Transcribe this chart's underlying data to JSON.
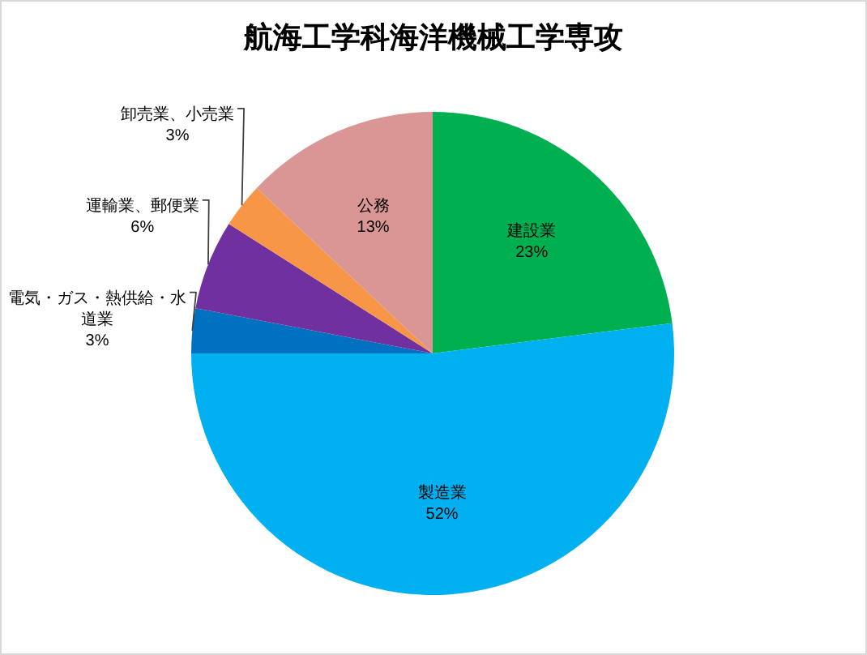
{
  "chart_data": {
    "type": "pie",
    "title": "航海工学科海洋機械工学専攻",
    "categories": [
      "建設業",
      "製造業",
      "電気・ガス・熱供給・水道業",
      "運輸業、郵便業",
      "卸売業、小売業",
      "公務"
    ],
    "values": [
      23,
      52,
      3,
      6,
      3,
      13
    ],
    "colors": [
      "#00b050",
      "#00b0f0",
      "#0070c0",
      "#7030a0",
      "#f79646",
      "#d99694"
    ],
    "value_labels": [
      "23%",
      "52%",
      "3%",
      "6%",
      "3%",
      "13%"
    ]
  }
}
